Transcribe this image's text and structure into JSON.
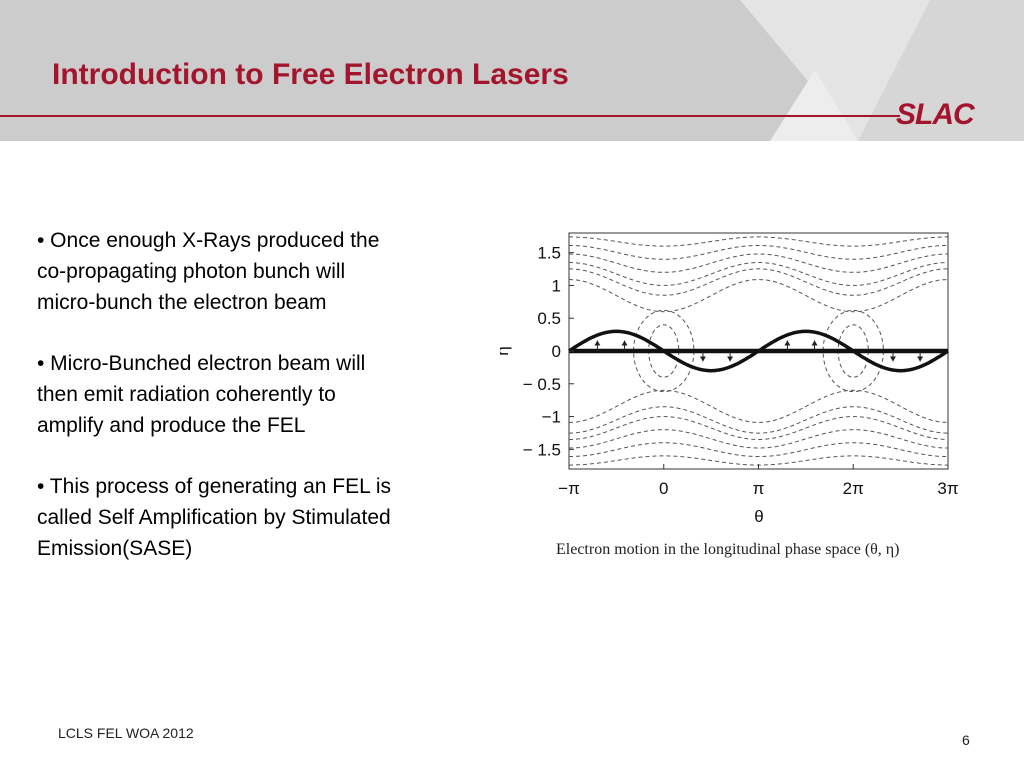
{
  "slide": {
    "title": "Introduction to Free Electron Lasers",
    "logo_text": "SLAC",
    "bullets": [
      "• Once enough X-Rays produced the co-propagating photon bunch will micro-bunch the electron beam",
      "• Micro-Bunched electron beam will then emit radiation coherently to amplify and produce the FEL",
      "• This process of generating an FEL is called Self Amplification by Stimulated Emission(SASE)"
    ],
    "figure_caption": "Electron motion in the longitudinal phase space (θ, η)",
    "footer_text": "LCLS FEL WOA 2012",
    "page_number": "6"
  },
  "colors": {
    "accent": "#a3152d",
    "header_bg": "#cccccc"
  },
  "chart_data": {
    "type": "line",
    "xlabel": "θ",
    "ylabel": "η",
    "xlim": [
      -3.14159,
      9.42478
    ],
    "ylim": [
      -1.8,
      1.8
    ],
    "xticks": [
      {
        "value": -3.14159,
        "label": "−π"
      },
      {
        "value": 0,
        "label": "0"
      },
      {
        "value": 3.14159,
        "label": "π"
      },
      {
        "value": 6.28318,
        "label": "2π"
      },
      {
        "value": 9.42478,
        "label": "3π"
      }
    ],
    "yticks": [
      {
        "value": 1.5,
        "label": "1.5"
      },
      {
        "value": 1,
        "label": "1"
      },
      {
        "value": 0.5,
        "label": "0.5"
      },
      {
        "value": 0,
        "label": "0"
      },
      {
        "value": -0.5,
        "label": "− 0.5"
      },
      {
        "value": -1,
        "label": "−1"
      },
      {
        "value": -1.5,
        "label": "− 1.5"
      }
    ],
    "separatrix_curves": [
      {
        "level": 0.6,
        "style": "dashed"
      },
      {
        "level": 0.85,
        "style": "dashed"
      },
      {
        "level": 1.0,
        "style": "dashed"
      },
      {
        "level": 1.2,
        "style": "dashed"
      },
      {
        "level": 1.4,
        "style": "dashed"
      },
      {
        "level": 1.6,
        "style": "dashed"
      }
    ],
    "island_contours": [
      {
        "center": 0,
        "half_width": 0.5,
        "half_height": 0.4
      },
      {
        "center": 0,
        "half_width": 1.0,
        "half_height": 0.62
      },
      {
        "center": 6.28318,
        "half_width": 0.5,
        "half_height": 0.4
      },
      {
        "center": 6.28318,
        "half_width": 1.0,
        "half_height": 0.62
      }
    ],
    "series": [
      {
        "style": "solid-bold",
        "type": "flat",
        "y": 0
      },
      {
        "style": "solid-bold",
        "type": "sine",
        "amplitude": 0.3,
        "phase": "-sin(θ)"
      }
    ]
  }
}
